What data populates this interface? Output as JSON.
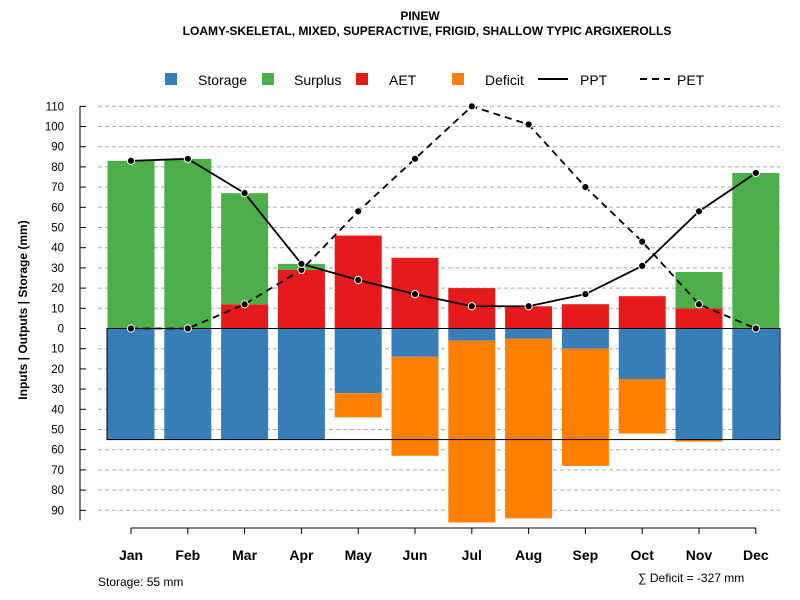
{
  "chart_data": {
    "type": "bar",
    "title": "PINEW",
    "subtitle": "LOAMY-SKELETAL, MIXED, SUPERACTIVE, FRIGID, SHALLOW TYPIC ARGIXEROLLS",
    "ylabel": "Inputs | Outputs | Storage    (mm)",
    "ylim": [
      -95,
      110
    ],
    "categories": [
      "Jan",
      "Feb",
      "Mar",
      "Apr",
      "May",
      "Jun",
      "Jul",
      "Aug",
      "Sep",
      "Oct",
      "Nov",
      "Dec"
    ],
    "y_ticks": [
      110,
      100,
      90,
      80,
      70,
      60,
      50,
      40,
      30,
      20,
      10,
      0,
      -10,
      -20,
      -30,
      -40,
      -50,
      -60,
      -70,
      -80,
      -90
    ],
    "y_tick_labels": [
      "110",
      "100",
      "90",
      "80",
      "70",
      "60",
      "50",
      "40",
      "30",
      "20",
      "10",
      "0",
      "10",
      "20",
      "30",
      "40",
      "50",
      "60",
      "70",
      "80",
      "90"
    ],
    "series": [
      {
        "name": "Storage",
        "color": "#377EB8",
        "values": [
          55,
          55,
          55,
          55,
          32,
          14,
          6,
          5,
          10,
          25,
          55,
          55
        ]
      },
      {
        "name": "Surplus",
        "color": "#4DAF4A",
        "values": [
          83,
          84,
          55,
          3,
          0,
          0,
          0,
          0,
          0,
          0,
          18,
          77
        ]
      },
      {
        "name": "AET",
        "color": "#E41A1C",
        "values": [
          0,
          0,
          12,
          29,
          46,
          35,
          20,
          11,
          12,
          16,
          10,
          0
        ]
      },
      {
        "name": "Deficit",
        "color": "#FF7F00",
        "values": [
          0,
          0,
          0,
          0,
          12,
          49,
          90,
          89,
          58,
          27,
          1,
          0
        ]
      },
      {
        "name": "PPT",
        "style": "solid",
        "values": [
          83,
          84,
          67,
          32,
          24,
          17,
          11,
          11,
          17,
          31,
          58,
          77
        ]
      },
      {
        "name": "PET",
        "style": "dashed",
        "values": [
          0,
          0,
          12,
          29,
          58,
          84,
          110,
          101,
          70,
          43,
          12,
          0
        ]
      }
    ],
    "storage_capacity": 55,
    "storage_note": "Storage: 55 mm",
    "deficit_note": "∑ Deficit = -327 mm"
  }
}
